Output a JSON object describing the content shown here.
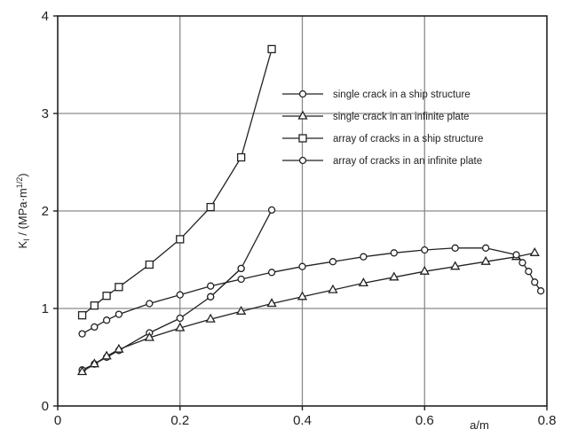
{
  "chart_data": {
    "type": "line",
    "title": "",
    "xlabel": "a/m",
    "ylabel": "K_I / (MPa·m^1/2)",
    "ylabel_main": "K",
    "ylabel_sub": "I",
    "ylabel_units": " / (MPa·m",
    "ylabel_exp": "1/2",
    "ylabel_close": ")",
    "xlim": [
      0,
      0.8
    ],
    "ylim": [
      0,
      4
    ],
    "x_ticks": [
      0,
      0.2,
      0.4,
      0.6,
      0.8
    ],
    "x_tick_labels": [
      "0",
      "0.2",
      "0.4",
      "0.6",
      "0.8"
    ],
    "y_ticks": [
      0,
      1,
      2,
      3,
      4
    ],
    "y_tick_labels": [
      "0",
      "1",
      "2",
      "3",
      "4"
    ],
    "grid": true,
    "legend_position": "top-right",
    "series": [
      {
        "name": "single crack in a ship structure",
        "marker": "circle",
        "x": [
          0.04,
          0.06,
          0.08,
          0.1,
          0.15,
          0.2,
          0.25,
          0.3
        ],
        "y": [
          0.37,
          0.43,
          0.5,
          0.57,
          0.75,
          0.9,
          1.12,
          1.41
        ]
      },
      {
        "name": "single crack in an infinite plate",
        "marker": "triangle",
        "x": [
          0.04,
          0.06,
          0.08,
          0.1,
          0.15,
          0.2,
          0.25,
          0.3,
          0.35,
          0.4,
          0.45,
          0.5,
          0.55,
          0.6,
          0.65,
          0.7,
          0.75,
          0.78
        ],
        "y": [
          0.35,
          0.43,
          0.51,
          0.58,
          0.7,
          0.8,
          0.89,
          0.97,
          1.05,
          1.12,
          1.19,
          1.26,
          1.32,
          1.38,
          1.43,
          1.48,
          1.53,
          1.57
        ]
      },
      {
        "name": "array of cracks in a ship structure",
        "marker": "square",
        "x": [
          0.04,
          0.06,
          0.08,
          0.1,
          0.15,
          0.2,
          0.25,
          0.3,
          0.35
        ],
        "y": [
          0.93,
          1.03,
          1.13,
          1.22,
          1.45,
          1.71,
          2.04,
          2.55,
          3.66
        ]
      },
      {
        "name": "array of cracks in an infinite plate",
        "marker": "circle",
        "x": [
          0.04,
          0.06,
          0.08,
          0.1,
          0.15,
          0.2,
          0.25,
          0.3,
          0.35,
          0.4,
          0.45,
          0.5,
          0.55,
          0.6,
          0.65,
          0.7,
          0.75,
          0.76,
          0.77,
          0.78,
          0.79
        ],
        "y": [
          0.74,
          0.81,
          0.88,
          0.94,
          1.05,
          1.14,
          1.23,
          1.3,
          1.37,
          1.43,
          1.48,
          1.53,
          1.57,
          1.6,
          1.62,
          1.62,
          1.55,
          1.47,
          1.38,
          1.27,
          1.18
        ]
      },
      {
        "name": "",
        "marker": "circle",
        "x": [
          0.25,
          0.3,
          0.35
        ],
        "y": [
          1.12,
          1.41,
          2.01
        ]
      }
    ]
  }
}
